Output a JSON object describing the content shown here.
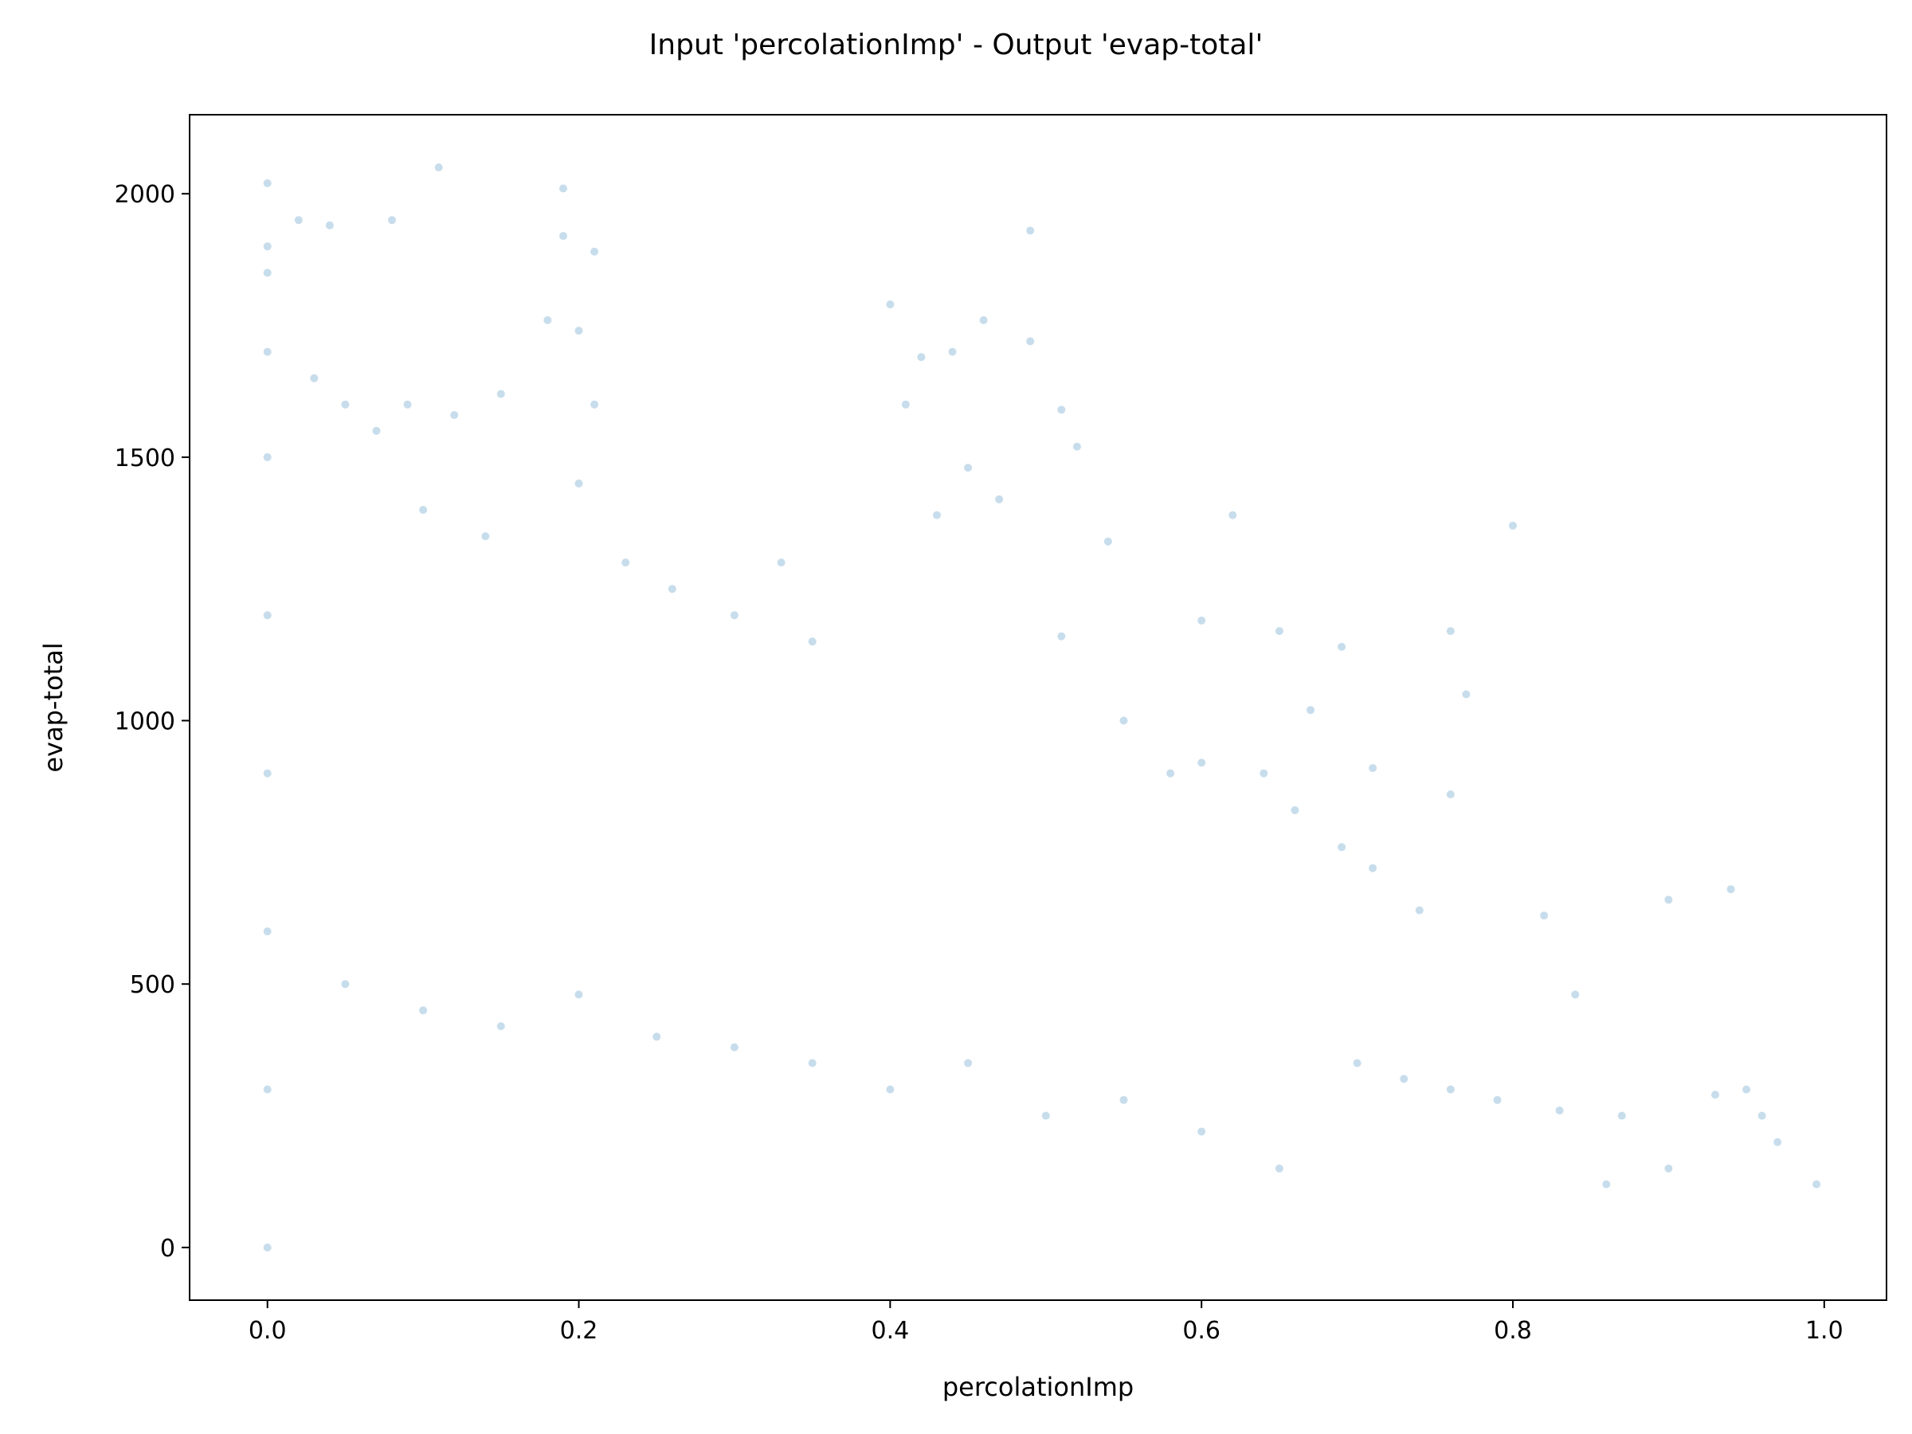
{
  "chart_data": {
    "type": "scatter",
    "title": "Input 'percolationImp' - Output 'evap-total'",
    "xlabel": "percolationImp",
    "ylabel": "evap-total",
    "xlim": [
      -0.05,
      1.04
    ],
    "ylim": [
      -100,
      2150
    ],
    "xticks": [
      0.0,
      0.2,
      0.4,
      0.6,
      0.8,
      1.0
    ],
    "xtick_labels": [
      "0.0",
      "0.2",
      "0.4",
      "0.6",
      "0.8",
      "1.0"
    ],
    "yticks": [
      0,
      500,
      1000,
      1500,
      2000
    ],
    "ytick_labels": [
      "0",
      "500",
      "1000",
      "1500",
      "2000"
    ],
    "grid": false,
    "legend": "none",
    "marker_color": "#1f77b4",
    "marker_alpha": 0.25,
    "series": [
      {
        "points": [
          [
            0.0,
            2020
          ],
          [
            0.0,
            1900
          ],
          [
            0.0,
            1850
          ],
          [
            0.0,
            1700
          ],
          [
            0.0,
            1500
          ],
          [
            0.0,
            1200
          ],
          [
            0.0,
            900
          ],
          [
            0.0,
            600
          ],
          [
            0.0,
            300
          ],
          [
            0.0,
            0
          ],
          [
            0.02,
            1950
          ],
          [
            0.04,
            1940
          ],
          [
            0.08,
            1950
          ],
          [
            0.11,
            2050
          ],
          [
            0.19,
            2010
          ],
          [
            0.19,
            1920
          ],
          [
            0.21,
            1890
          ],
          [
            0.49,
            1930
          ],
          [
            0.03,
            1650
          ],
          [
            0.05,
            1600
          ],
          [
            0.07,
            1550
          ],
          [
            0.09,
            1600
          ],
          [
            0.12,
            1580
          ],
          [
            0.15,
            1620
          ],
          [
            0.18,
            1760
          ],
          [
            0.2,
            1740
          ],
          [
            0.21,
            1600
          ],
          [
            0.1,
            1400
          ],
          [
            0.14,
            1350
          ],
          [
            0.2,
            1450
          ],
          [
            0.23,
            1300
          ],
          [
            0.26,
            1250
          ],
          [
            0.3,
            1200
          ],
          [
            0.33,
            1300
          ],
          [
            0.35,
            1150
          ],
          [
            0.4,
            1790
          ],
          [
            0.42,
            1690
          ],
          [
            0.46,
            1760
          ],
          [
            0.49,
            1720
          ],
          [
            0.44,
            1700
          ],
          [
            0.41,
            1600
          ],
          [
            0.51,
            1590
          ],
          [
            0.52,
            1520
          ],
          [
            0.45,
            1480
          ],
          [
            0.43,
            1390
          ],
          [
            0.47,
            1420
          ],
          [
            0.54,
            1340
          ],
          [
            0.62,
            1390
          ],
          [
            0.8,
            1370
          ],
          [
            0.6,
            1190
          ],
          [
            0.65,
            1170
          ],
          [
            0.51,
            1160
          ],
          [
            0.69,
            1140
          ],
          [
            0.76,
            1170
          ],
          [
            0.77,
            1050
          ],
          [
            0.67,
            1020
          ],
          [
            0.71,
            910
          ],
          [
            0.76,
            860
          ],
          [
            0.55,
            1000
          ],
          [
            0.58,
            900
          ],
          [
            0.6,
            920
          ],
          [
            0.64,
            900
          ],
          [
            0.66,
            830
          ],
          [
            0.69,
            760
          ],
          [
            0.71,
            720
          ],
          [
            0.74,
            640
          ],
          [
            0.82,
            630
          ],
          [
            0.9,
            660
          ],
          [
            0.94,
            680
          ],
          [
            0.05,
            500
          ],
          [
            0.1,
            450
          ],
          [
            0.15,
            420
          ],
          [
            0.2,
            480
          ],
          [
            0.25,
            400
          ],
          [
            0.3,
            380
          ],
          [
            0.35,
            350
          ],
          [
            0.4,
            300
          ],
          [
            0.45,
            350
          ],
          [
            0.5,
            250
          ],
          [
            0.55,
            280
          ],
          [
            0.6,
            220
          ],
          [
            0.65,
            150
          ],
          [
            0.7,
            350
          ],
          [
            0.73,
            320
          ],
          [
            0.76,
            300
          ],
          [
            0.79,
            280
          ],
          [
            0.83,
            260
          ],
          [
            0.87,
            250
          ],
          [
            0.9,
            150
          ],
          [
            0.95,
            300
          ],
          [
            0.96,
            250
          ],
          [
            0.97,
            200
          ],
          [
            0.995,
            120
          ],
          [
            0.93,
            290
          ],
          [
            0.86,
            120
          ],
          [
            0.84,
            480
          ]
        ]
      }
    ]
  }
}
